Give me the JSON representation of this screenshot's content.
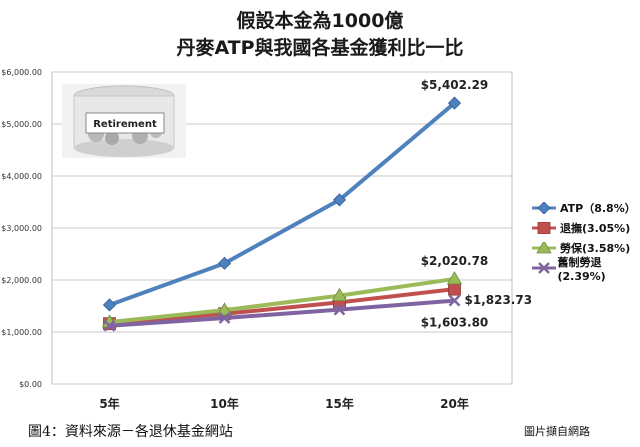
{
  "title_line1": "假設本金為1000億",
  "title_line2": "丹麥ATP與我國各基金獲利比一比",
  "caption": "圖4：資料來源－各退休基金網站",
  "credit": "圖片擷自網路",
  "image_label": "Retirement",
  "chart_data": {
    "type": "line",
    "title": "假設本金為1000億 丹麥ATP與我國各基金獲利比一比",
    "xlabel": "",
    "ylabel": "",
    "categories": [
      "5年",
      "10年",
      "15年",
      "20年"
    ],
    "ylim": [
      0,
      6000
    ],
    "yticks": [
      0,
      1000,
      2000,
      3000,
      4000,
      5000,
      6000
    ],
    "ytick_labels": [
      "$0.00",
      "$1,000.00",
      "$2,000.00",
      "$3,000.00",
      "$4,000.00",
      "$5,000.00",
      "$6,000.00"
    ],
    "grid": true,
    "legend_position": "right",
    "series": [
      {
        "name": "ATP（8.8%）",
        "color": "#4f81bd",
        "marker": "diamond",
        "values": [
          1520,
          2320,
          3540,
          5402.29
        ]
      },
      {
        "name": "退撫(3.05%)",
        "color": "#c0504d",
        "marker": "square",
        "values": [
          1160,
          1350,
          1570,
          1823.73
        ]
      },
      {
        "name": "勞保(3.58%)",
        "color": "#9bbb59",
        "marker": "triangle",
        "values": [
          1190,
          1420,
          1700,
          2020.78
        ]
      },
      {
        "name": "舊制勞退(2.39%)",
        "color": "#8064a2",
        "marker": "x",
        "values": [
          1120,
          1270,
          1430,
          1603.8
        ]
      }
    ],
    "annotations": [
      "$5,402.29",
      "$2,020.78",
      "$1,823.73",
      "$1,603.80"
    ]
  }
}
